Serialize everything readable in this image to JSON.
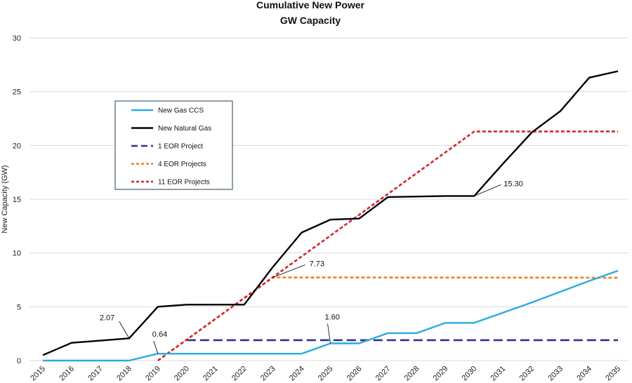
{
  "chart_data": {
    "type": "line",
    "title": "Cumulative New Power",
    "subtitle": "GW Capacity",
    "xlabel": "",
    "ylabel": "New Capacity (GW)",
    "ylim": [
      0,
      30
    ],
    "yticks": [
      0,
      5,
      10,
      15,
      20,
      25,
      30
    ],
    "categories": [
      "2015",
      "2016",
      "2017",
      "2018",
      "2019",
      "2020",
      "2021",
      "2022",
      "2023",
      "2024",
      "2025",
      "2026",
      "2027",
      "2028",
      "2029",
      "2030",
      "2031",
      "2032",
      "2033",
      "2034",
      "2035"
    ],
    "grid": "horizontal",
    "legend_position": "left-inside",
    "series": [
      {
        "name": "New Gas CCS",
        "color": "#2aabe0",
        "dash": "solid",
        "x": [
          2015,
          2016,
          2017,
          2018,
          2019,
          2020,
          2021,
          2022,
          2023,
          2024,
          2025,
          2026,
          2027,
          2028,
          2029,
          2030,
          2031,
          2032,
          2033,
          2034,
          2035
        ],
        "values": [
          0,
          0,
          0,
          0,
          0.64,
          0.64,
          0.64,
          0.64,
          0.64,
          0.64,
          1.6,
          1.6,
          2.55,
          2.55,
          3.5,
          3.5,
          4.45,
          5.4,
          6.4,
          7.4,
          8.35
        ]
      },
      {
        "name": "New Natural Gas",
        "color": "#000000",
        "dash": "solid",
        "x": [
          2015,
          2016,
          2017,
          2018,
          2019,
          2020,
          2021,
          2022,
          2023,
          2024,
          2025,
          2026,
          2027,
          2028,
          2029,
          2030,
          2031,
          2032,
          2033,
          2034,
          2035
        ],
        "values": [
          0.5,
          1.65,
          1.85,
          2.07,
          5.0,
          5.2,
          5.2,
          5.2,
          8.7,
          11.9,
          13.1,
          13.2,
          15.2,
          15.25,
          15.3,
          15.3,
          18.3,
          21.2,
          23.2,
          26.3,
          26.9
        ]
      },
      {
        "name": "1 EOR Project",
        "color": "#2e3192",
        "dash": "long-dash",
        "x": [
          2020,
          2035
        ],
        "values": [
          1.9,
          1.9
        ]
      },
      {
        "name": "4 EOR Projects",
        "color": "#f07f21",
        "dash": "dash",
        "x": [
          2019,
          2023,
          2035
        ],
        "values": [
          0,
          7.73,
          7.7
        ]
      },
      {
        "name": "11 EOR Projects",
        "color": "#d02730",
        "dash": "dash",
        "x": [
          2019,
          2030,
          2035
        ],
        "values": [
          0,
          21.3,
          21.3
        ]
      }
    ],
    "annotations": [
      {
        "label": "2.07",
        "x": 2018,
        "y": 2.07
      },
      {
        "label": "0.64",
        "x": 2019,
        "y": 0.64
      },
      {
        "label": "7.73",
        "x": 2023,
        "y": 7.73
      },
      {
        "label": "1.60",
        "x": 2025,
        "y": 1.6
      },
      {
        "label": "15.30",
        "x": 2030,
        "y": 15.3
      }
    ]
  }
}
